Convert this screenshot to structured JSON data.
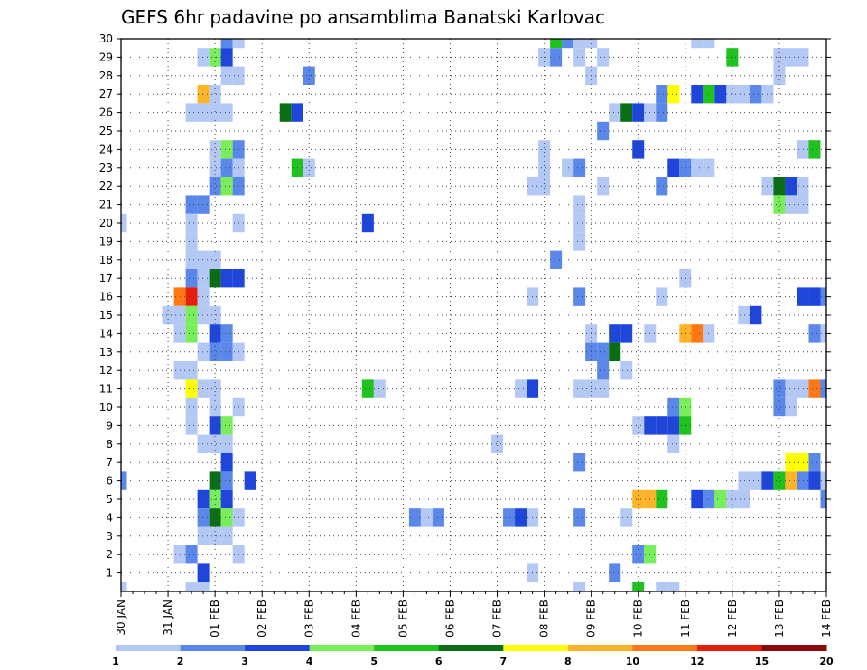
{
  "chart_data": {
    "type": "heatmap",
    "title": "GEFS 6hr padavine po ansamblima Banatski Karlovac",
    "xlabel": "",
    "ylabel": "",
    "x_tick_labels": [
      "30 JAN",
      "31 JAN",
      "01 FEB",
      "02 FEB",
      "03 FEB",
      "04 FEB",
      "05 FEB",
      "06 FEB",
      "07 FEB",
      "08 FEB",
      "09 FEB",
      "10 FEB",
      "11 FEB",
      "12 FEB",
      "13 FEB",
      "14 FEB"
    ],
    "y_tick_labels": [
      "1",
      "2",
      "3",
      "4",
      "5",
      "6",
      "7",
      "8",
      "9",
      "10",
      "11",
      "12",
      "13",
      "14",
      "15",
      "16",
      "17",
      "18",
      "19",
      "20",
      "21",
      "22",
      "23",
      "24",
      "25",
      "26",
      "27",
      "28",
      "29",
      "30"
    ],
    "x_range_days": [
      0,
      15
    ],
    "y_range": [
      0,
      30
    ],
    "time_step_days": 0.25,
    "grid": "dotted",
    "colorbar": {
      "labels": [
        "1",
        "2",
        "3",
        "4",
        "5",
        "6",
        "7",
        "8",
        "10",
        "12",
        "15",
        "20"
      ],
      "colors": [
        "#b4c8f5",
        "#5a87ea",
        "#1e46dc",
        "#78ee5a",
        "#1ec31e",
        "#0a6e14",
        "#ffff00",
        "#ffb428",
        "#ff7814",
        "#e61e0a",
        "#8c0a0a"
      ]
    },
    "cells": [
      [
        30,
        2.25,
        2
      ],
      [
        30,
        2.5,
        1
      ],
      [
        30,
        9.25,
        5
      ],
      [
        30,
        9.5,
        2
      ],
      [
        30,
        9.75,
        1
      ],
      [
        30,
        10,
        1
      ],
      [
        30,
        12.25,
        1
      ],
      [
        30,
        12.5,
        1
      ],
      [
        29,
        1.75,
        1
      ],
      [
        29,
        2,
        4
      ],
      [
        29,
        2.25,
        3
      ],
      [
        29,
        9,
        1
      ],
      [
        29,
        9.25,
        2
      ],
      [
        29,
        9.75,
        1
      ],
      [
        29,
        10.25,
        1
      ],
      [
        29,
        13,
        5
      ],
      [
        29,
        14,
        1
      ],
      [
        29,
        14.25,
        1
      ],
      [
        29,
        14.5,
        1
      ],
      [
        28,
        2.25,
        1
      ],
      [
        28,
        2.5,
        1
      ],
      [
        28,
        4,
        2
      ],
      [
        28,
        10,
        1
      ],
      [
        28,
        14,
        1
      ],
      [
        27,
        1.75,
        8
      ],
      [
        27,
        2,
        1
      ],
      [
        27,
        11.5,
        2
      ],
      [
        27,
        11.75,
        7
      ],
      [
        27,
        12.25,
        3
      ],
      [
        27,
        12.5,
        5
      ],
      [
        27,
        12.75,
        3
      ],
      [
        27,
        13,
        1
      ],
      [
        27,
        13.25,
        1
      ],
      [
        27,
        13.5,
        2
      ],
      [
        27,
        13.75,
        1
      ],
      [
        26,
        1.5,
        1
      ],
      [
        26,
        1.75,
        1
      ],
      [
        26,
        2,
        1
      ],
      [
        26,
        2.25,
        1
      ],
      [
        26,
        3.5,
        6
      ],
      [
        26,
        3.75,
        3
      ],
      [
        26,
        10.5,
        1
      ],
      [
        26,
        10.75,
        6
      ],
      [
        26,
        11,
        3
      ],
      [
        26,
        11.25,
        1
      ],
      [
        26,
        11.5,
        2
      ],
      [
        25,
        10.25,
        2
      ],
      [
        24,
        2,
        1
      ],
      [
        24,
        2.25,
        4
      ],
      [
        24,
        2.5,
        2
      ],
      [
        24,
        9,
        1
      ],
      [
        24,
        11,
        3
      ],
      [
        24,
        14.5,
        1
      ],
      [
        24,
        14.75,
        5
      ],
      [
        23,
        2,
        1
      ],
      [
        23,
        2.25,
        2
      ],
      [
        23,
        2.5,
        1
      ],
      [
        23,
        3.75,
        5
      ],
      [
        23,
        4,
        1
      ],
      [
        23,
        9,
        1
      ],
      [
        23,
        9.5,
        1
      ],
      [
        23,
        9.75,
        2
      ],
      [
        23,
        11.75,
        3
      ],
      [
        23,
        12,
        2
      ],
      [
        23,
        12.25,
        1
      ],
      [
        23,
        12.5,
        1
      ],
      [
        22,
        2,
        2
      ],
      [
        22,
        2.25,
        4
      ],
      [
        22,
        2.5,
        2
      ],
      [
        22,
        8.75,
        1
      ],
      [
        22,
        9,
        1
      ],
      [
        22,
        10.25,
        1
      ],
      [
        22,
        11.5,
        2
      ],
      [
        22,
        13.75,
        1
      ],
      [
        22,
        14,
        6
      ],
      [
        22,
        14.25,
        3
      ],
      [
        22,
        14.5,
        1
      ],
      [
        21,
        1.5,
        2
      ],
      [
        21,
        1.75,
        2
      ],
      [
        21,
        9.75,
        1
      ],
      [
        21,
        14,
        4
      ],
      [
        21,
        14.25,
        1
      ],
      [
        21,
        14.5,
        1
      ],
      [
        20,
        0,
        1
      ],
      [
        20,
        1.5,
        1
      ],
      [
        20,
        2.5,
        1
      ],
      [
        20,
        5.25,
        3
      ],
      [
        20,
        9.75,
        1
      ],
      [
        19,
        1.5,
        1
      ],
      [
        19,
        9.75,
        1
      ],
      [
        18,
        1.5,
        1
      ],
      [
        18,
        1.75,
        1
      ],
      [
        18,
        2,
        1
      ],
      [
        18,
        9.25,
        2
      ],
      [
        17,
        1.5,
        2
      ],
      [
        17,
        1.75,
        1
      ],
      [
        17,
        2,
        6
      ],
      [
        17,
        2.25,
        3
      ],
      [
        17,
        2.5,
        3
      ],
      [
        17,
        12,
        1
      ],
      [
        16,
        1.25,
        9
      ],
      [
        16,
        1.5,
        10
      ],
      [
        16,
        1.75,
        1
      ],
      [
        16,
        8.75,
        1
      ],
      [
        16,
        9.75,
        2
      ],
      [
        16,
        11.5,
        1
      ],
      [
        16,
        14.5,
        3
      ],
      [
        16,
        14.75,
        3
      ],
      [
        16,
        15,
        2
      ],
      [
        15,
        1,
        1
      ],
      [
        15,
        1.25,
        1
      ],
      [
        15,
        1.5,
        4
      ],
      [
        15,
        1.75,
        1
      ],
      [
        15,
        2,
        1
      ],
      [
        15,
        13.25,
        1
      ],
      [
        15,
        13.5,
        3
      ],
      [
        14,
        1.25,
        1
      ],
      [
        14,
        1.5,
        4
      ],
      [
        14,
        2,
        3
      ],
      [
        14,
        2.25,
        2
      ],
      [
        14,
        10,
        1
      ],
      [
        14,
        10.5,
        3
      ],
      [
        14,
        10.75,
        3
      ],
      [
        14,
        11.25,
        1
      ],
      [
        14,
        12,
        8
      ],
      [
        14,
        12.25,
        9
      ],
      [
        14,
        12.5,
        1
      ],
      [
        14,
        14.75,
        2
      ],
      [
        14,
        15,
        1
      ],
      [
        13,
        1.75,
        1
      ],
      [
        13,
        2,
        2
      ],
      [
        13,
        2.25,
        2
      ],
      [
        13,
        2.5,
        1
      ],
      [
        13,
        10,
        2
      ],
      [
        13,
        10.25,
        2
      ],
      [
        13,
        10.5,
        6
      ],
      [
        12,
        1.25,
        1
      ],
      [
        12,
        1.5,
        1
      ],
      [
        12,
        10.25,
        2
      ],
      [
        12,
        10.75,
        1
      ],
      [
        11,
        1.5,
        7
      ],
      [
        11,
        1.75,
        1
      ],
      [
        11,
        2,
        1
      ],
      [
        11,
        5.25,
        5
      ],
      [
        11,
        5.5,
        1
      ],
      [
        11,
        8.5,
        1
      ],
      [
        11,
        8.75,
        3
      ],
      [
        11,
        9.75,
        1
      ],
      [
        11,
        10,
        1
      ],
      [
        11,
        10.25,
        1
      ],
      [
        11,
        14,
        2
      ],
      [
        11,
        14.25,
        1
      ],
      [
        11,
        14.5,
        1
      ],
      [
        11,
        14.75,
        9
      ],
      [
        11,
        15,
        2
      ],
      [
        10,
        1.5,
        1
      ],
      [
        10,
        2,
        1
      ],
      [
        10,
        2.5,
        1
      ],
      [
        10,
        11.75,
        2
      ],
      [
        10,
        12,
        4
      ],
      [
        10,
        14,
        2
      ],
      [
        10,
        14.25,
        1
      ],
      [
        9,
        1.5,
        1
      ],
      [
        9,
        2,
        3
      ],
      [
        9,
        2.25,
        4
      ],
      [
        9,
        11,
        1
      ],
      [
        9,
        11.25,
        3
      ],
      [
        9,
        11.5,
        3
      ],
      [
        9,
        11.75,
        3
      ],
      [
        9,
        12,
        5
      ],
      [
        8,
        1.75,
        1
      ],
      [
        8,
        2,
        1
      ],
      [
        8,
        2.25,
        1
      ],
      [
        8,
        8,
        1
      ],
      [
        8,
        11.75,
        1
      ],
      [
        7,
        2.25,
        3
      ],
      [
        7,
        9.75,
        2
      ],
      [
        7,
        14.25,
        7
      ],
      [
        7,
        14.5,
        7
      ],
      [
        7,
        14.75,
        2
      ],
      [
        6,
        0,
        2
      ],
      [
        6,
        2,
        6
      ],
      [
        6,
        2.25,
        2
      ],
      [
        6,
        2.75,
        3
      ],
      [
        6,
        13.25,
        1
      ],
      [
        6,
        13.5,
        1
      ],
      [
        6,
        13.75,
        3
      ],
      [
        6,
        14,
        5
      ],
      [
        6,
        14.25,
        8
      ],
      [
        6,
        14.5,
        2
      ],
      [
        6,
        14.75,
        3
      ],
      [
        6,
        15,
        1
      ],
      [
        5,
        1.75,
        3
      ],
      [
        5,
        2,
        4
      ],
      [
        5,
        2.25,
        3
      ],
      [
        5,
        11,
        8
      ],
      [
        5,
        11.25,
        8
      ],
      [
        5,
        11.5,
        5
      ],
      [
        5,
        12.25,
        3
      ],
      [
        5,
        12.5,
        2
      ],
      [
        5,
        12.75,
        4
      ],
      [
        5,
        13,
        1
      ],
      [
        5,
        13.25,
        1
      ],
      [
        5,
        15,
        2
      ],
      [
        4,
        1.75,
        2
      ],
      [
        4,
        2,
        6
      ],
      [
        4,
        2.25,
        4
      ],
      [
        4,
        2.5,
        1
      ],
      [
        4,
        6.25,
        2
      ],
      [
        4,
        6.5,
        1
      ],
      [
        4,
        6.75,
        2
      ],
      [
        4,
        8.25,
        2
      ],
      [
        4,
        8.5,
        3
      ],
      [
        4,
        8.75,
        1
      ],
      [
        4,
        9.75,
        2
      ],
      [
        4,
        10.75,
        1
      ],
      [
        3,
        1.75,
        1
      ],
      [
        3,
        2,
        1
      ],
      [
        3,
        2.25,
        1
      ],
      [
        2,
        1.25,
        1
      ],
      [
        2,
        1.5,
        2
      ],
      [
        2,
        2.5,
        1
      ],
      [
        2,
        11,
        2
      ],
      [
        2,
        11.25,
        4
      ],
      [
        1,
        1.75,
        3
      ],
      [
        1,
        8.75,
        1
      ],
      [
        1,
        10.5,
        2
      ],
      [
        0,
        0,
        1
      ],
      [
        0,
        1.5,
        1
      ],
      [
        0,
        1.75,
        1
      ],
      [
        0,
        9.75,
        1
      ],
      [
        0,
        11,
        5
      ],
      [
        0,
        11.5,
        1
      ],
      [
        0,
        11.75,
        1
      ]
    ]
  }
}
